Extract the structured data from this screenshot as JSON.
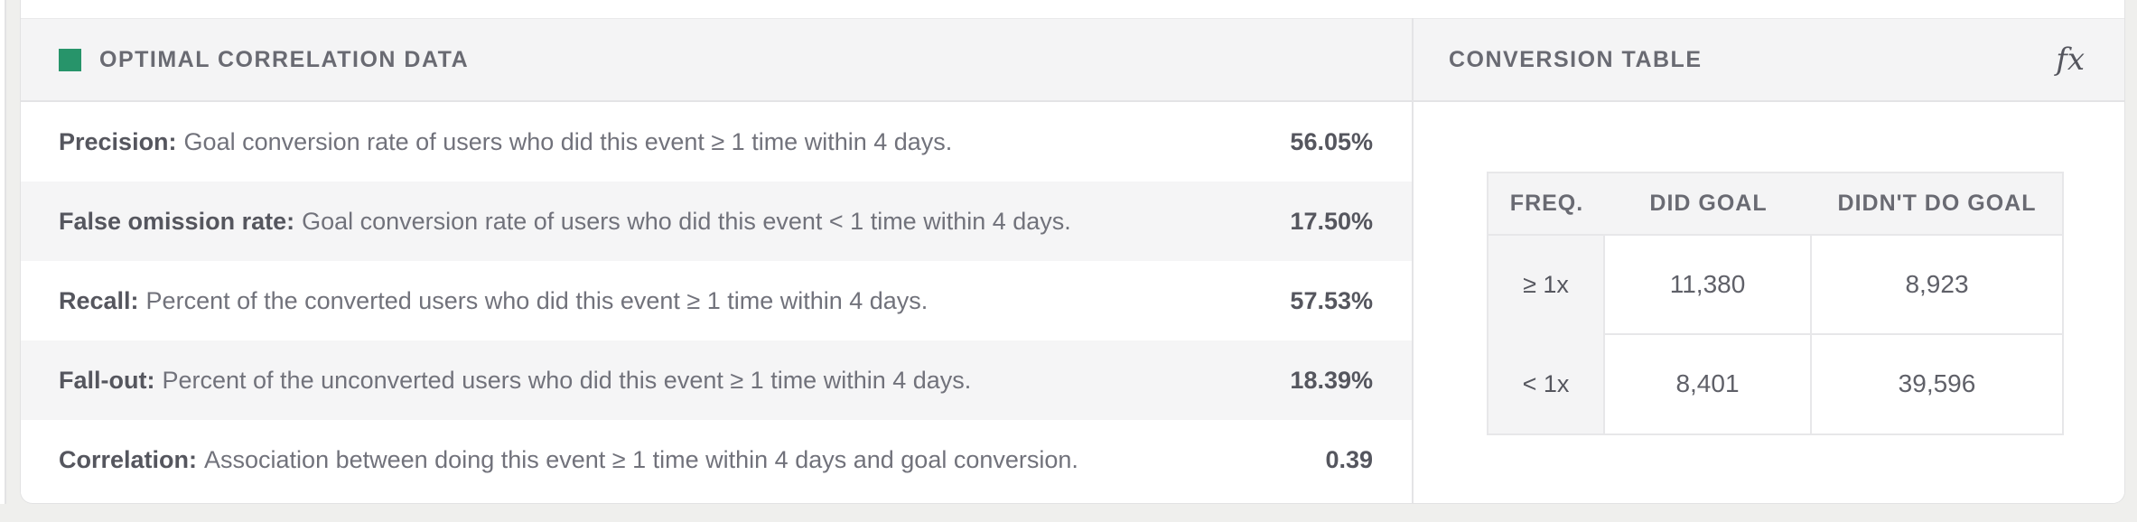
{
  "left_panel": {
    "title": "OPTIMAL CORRELATION DATA",
    "swatch_color": "#27946A",
    "rows": [
      {
        "label": "Precision:",
        "description": "Goal conversion rate of users who did this event ≥ 1 time within 4 days.",
        "value": "56.05%"
      },
      {
        "label": "False omission rate:",
        "description": "Goal conversion rate of users who did this event < 1 time within 4 days.",
        "value": "17.50%"
      },
      {
        "label": "Recall:",
        "description": "Percent of the converted users who did this event ≥ 1 time within 4 days.",
        "value": "57.53%"
      },
      {
        "label": "Fall-out:",
        "description": "Percent of the unconverted users who did this event ≥ 1 time within 4 days.",
        "value": "18.39%"
      },
      {
        "label": "Correlation:",
        "description": "Association between doing this event ≥ 1 time within 4 days and goal conversion.",
        "value": "0.39"
      }
    ]
  },
  "right_panel": {
    "title": "CONVERSION TABLE",
    "fx_icon_glyph": "fx",
    "table": {
      "headers": [
        "FREQ.",
        "DID GOAL",
        "DIDN'T DO GOAL"
      ],
      "rows": [
        {
          "freq": "≥ 1x",
          "did_goal": "11,380",
          "didnt_do_goal": "8,923"
        },
        {
          "freq": "< 1x",
          "did_goal": "8,401",
          "didnt_do_goal": "39,596"
        }
      ]
    }
  },
  "colors": {
    "page_background": "#efefed",
    "card_background": "#ffffff",
    "band_background": "#f4f4f5",
    "alt_row_background": "#f5f5f6",
    "border": "#e4e4e6",
    "accent_green": "#27946A",
    "text_primary": "#55565e",
    "text_secondary": "#71727b"
  }
}
